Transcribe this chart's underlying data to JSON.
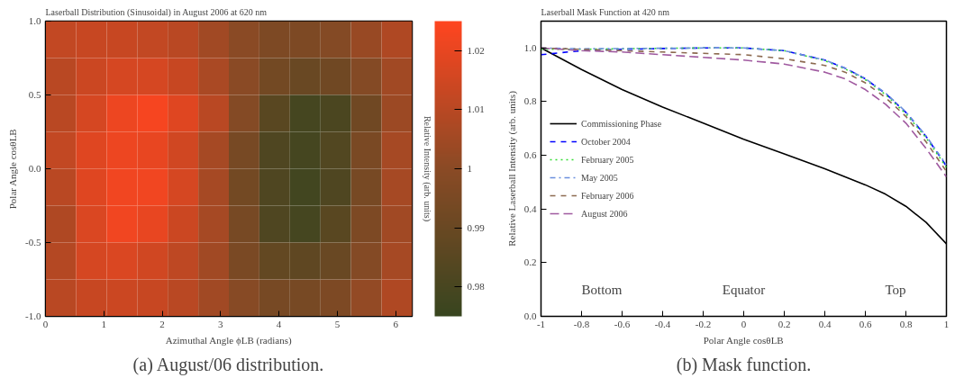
{
  "chart_data": [
    {
      "type": "heatmap",
      "title": "Laserball Distribution (Sinusoidal) in August 2006 at 620 nm",
      "xlabel": "Azimuthal Angle ϕLB (radians)",
      "ylabel": "Polar Angle cosθLB",
      "clabel": "Relative Intensity (arb. units)",
      "x": [
        0.262,
        0.785,
        1.309,
        1.833,
        2.356,
        2.88,
        3.403,
        3.927,
        4.451,
        4.974,
        5.498,
        6.021
      ],
      "y": [
        0.875,
        0.625,
        0.375,
        0.125,
        -0.125,
        -0.375,
        -0.625,
        -0.875
      ],
      "xlim": [
        0,
        6.283
      ],
      "xticks": [
        0,
        1,
        2,
        3,
        4,
        5,
        6
      ],
      "ylim": [
        -1,
        1
      ],
      "yticks": [
        {
          "value": -1,
          "label": "-1.0"
        },
        -0.5,
        {
          "value": 0,
          "label": "0.0"
        },
        0.5,
        {
          "value": 1,
          "label": "1.0"
        }
      ],
      "clim": [
        0.975,
        1.025
      ],
      "cticks": [
        0.98,
        0.99,
        1,
        1.01,
        1.02
      ],
      "cells": [
        [
          1.012,
          1.013,
          1.013,
          1.012,
          1.01,
          1.005,
          1.0,
          0.996,
          0.996,
          0.998,
          1.003,
          1.008
        ],
        [
          1.01,
          1.014,
          1.016,
          1.016,
          1.013,
          1.007,
          1.0,
          0.993,
          0.99,
          0.992,
          0.998,
          1.005
        ],
        [
          1.01,
          1.016,
          1.021,
          1.023,
          1.018,
          1.01,
          0.998,
          0.985,
          0.979,
          0.981,
          0.992,
          1.004
        ],
        [
          1.012,
          1.018,
          1.021,
          1.02,
          1.015,
          1.006,
          0.994,
          0.982,
          0.979,
          0.983,
          0.995,
          1.006
        ],
        [
          1.01,
          1.018,
          1.022,
          1.022,
          1.016,
          1.006,
          0.993,
          0.982,
          0.978,
          0.982,
          0.994,
          1.006
        ],
        [
          1.008,
          1.017,
          1.022,
          1.02,
          1.014,
          1.006,
          0.994,
          0.982,
          0.979,
          0.985,
          0.996,
          1.005
        ],
        [
          1.009,
          1.016,
          1.017,
          1.015,
          1.011,
          1.005,
          0.995,
          0.988,
          0.987,
          0.99,
          0.998,
          1.006
        ],
        [
          1.01,
          1.013,
          1.014,
          1.013,
          1.01,
          1.005,
          0.999,
          0.994,
          0.994,
          0.996,
          1.002,
          1.008
        ]
      ],
      "annotations": [
        "(a) August/06 distribution."
      ]
    },
    {
      "type": "line",
      "title": "Laserball Mask Function at 420 nm",
      "xlabel": "Polar Angle cosθLB",
      "ylabel": "Relative Laserball Intensity (arb. units)",
      "x": [
        -1,
        -0.8,
        -0.6,
        -0.4,
        -0.2,
        0,
        0.2,
        0.4,
        0.5,
        0.6,
        0.7,
        0.8,
        0.9,
        1
      ],
      "xlim": [
        -1,
        1
      ],
      "xticks": [
        -1,
        -0.8,
        -0.6,
        -0.4,
        -0.2,
        0,
        0.2,
        0.4,
        0.6,
        0.8,
        1
      ],
      "ylim": [
        0,
        1.1
      ],
      "yticks": [
        {
          "value": 0,
          "label": "0.0"
        },
        0.2,
        0.4,
        0.6,
        0.8,
        {
          "value": 1,
          "label": "1.0"
        }
      ],
      "legend": "left",
      "grid": false,
      "series": [
        {
          "name": "Commissioning Phase",
          "color": "#000000",
          "line_style": "solid",
          "values": [
            1.0,
            0.92,
            0.845,
            0.78,
            0.72,
            0.66,
            0.605,
            0.55,
            0.52,
            0.49,
            0.455,
            0.41,
            0.35,
            0.27
          ]
        },
        {
          "name": "October 2004",
          "color": "#0000ff",
          "line_style": "dashed",
          "values": [
            0.975,
            0.99,
            0.995,
            0.998,
            1.0,
            1.0,
            0.99,
            0.955,
            0.925,
            0.885,
            0.83,
            0.76,
            0.67,
            0.56
          ]
        },
        {
          "name": "February 2005",
          "color": "#33dd33",
          "line_style": "dotted",
          "values": [
            0.995,
            0.995,
            0.997,
            0.999,
            1.0,
            1.0,
            0.99,
            0.953,
            0.922,
            0.882,
            0.826,
            0.755,
            0.665,
            0.555
          ]
        },
        {
          "name": "May 2005",
          "color": "#6a8fdd",
          "line_style": "dashdot",
          "values": [
            1.0,
            0.997,
            0.998,
            0.999,
            1.0,
            1.0,
            0.99,
            0.955,
            0.925,
            0.886,
            0.832,
            0.762,
            0.672,
            0.565
          ]
        },
        {
          "name": "February 2006",
          "color": "#8c6a50",
          "line_style": "dashed",
          "values": [
            1.0,
            0.995,
            0.99,
            0.985,
            0.98,
            0.975,
            0.96,
            0.935,
            0.91,
            0.87,
            0.815,
            0.745,
            0.65,
            0.54
          ]
        },
        {
          "name": "August 2006",
          "color": "#a05aa0",
          "line_style": "longdash",
          "values": [
            1.0,
            0.99,
            0.985,
            0.975,
            0.965,
            0.955,
            0.94,
            0.91,
            0.885,
            0.845,
            0.79,
            0.72,
            0.625,
            0.52
          ]
        }
      ],
      "annotations": [
        "Bottom",
        "Equator",
        "Top",
        "(b) Mask function."
      ]
    }
  ]
}
